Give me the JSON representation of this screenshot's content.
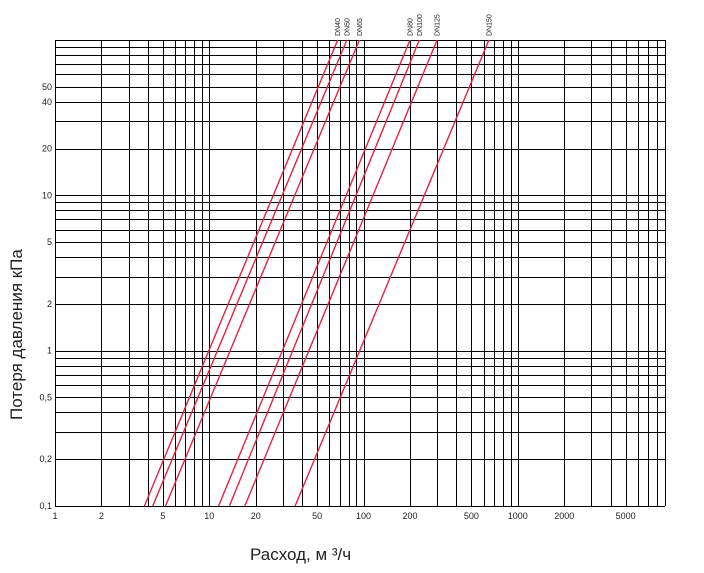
{
  "chart_data": {
    "type": "line",
    "title": "",
    "xlabel": "Расход,  м  ³/ч",
    "ylabel": "Потеря давления  кПа",
    "x_scale": "log",
    "y_scale": "log",
    "xlim": [
      1,
      9000
    ],
    "ylim": [
      0.1,
      100
    ],
    "grid": true,
    "x_ticks": [
      {
        "v": 1,
        "label": "1"
      },
      {
        "v": 2,
        "label": "2"
      },
      {
        "v": 5,
        "label": "5"
      },
      {
        "v": 10,
        "label": "10"
      },
      {
        "v": 20,
        "label": "20"
      },
      {
        "v": 50,
        "label": "50"
      },
      {
        "v": 100,
        "label": "100"
      },
      {
        "v": 200,
        "label": "200"
      },
      {
        "v": 500,
        "label": "500"
      },
      {
        "v": 1000,
        "label": "1000"
      },
      {
        "v": 2000,
        "label": "2000"
      },
      {
        "v": 5000,
        "label": "5000"
      }
    ],
    "y_ticks": [
      {
        "v": 0.1,
        "label": "0,1"
      },
      {
        "v": 0.2,
        "label": "0,2"
      },
      {
        "v": 0.5,
        "label": "0,5"
      },
      {
        "v": 1,
        "label": "1"
      },
      {
        "v": 2,
        "label": "2"
      },
      {
        "v": 5,
        "label": "5"
      },
      {
        "v": 10,
        "label": "10"
      },
      {
        "v": 20,
        "label": "20"
      },
      {
        "v": 40,
        "label": "40"
      },
      {
        "v": 50,
        "label": "50"
      }
    ],
    "series": [
      {
        "name": "DN40",
        "x": [
          3.8,
          68
        ],
        "y": [
          0.1,
          100
        ]
      },
      {
        "name": "DN50",
        "x": [
          4.3,
          78
        ],
        "y": [
          0.1,
          100
        ]
      },
      {
        "name": "DN65",
        "x": [
          5.2,
          94
        ],
        "y": [
          0.1,
          100
        ]
      },
      {
        "name": "DN80",
        "x": [
          11.5,
          200
        ],
        "y": [
          0.1,
          100
        ]
      },
      {
        "name": "DN100",
        "x": [
          13.5,
          230
        ],
        "y": [
          0.1,
          100
        ]
      },
      {
        "name": "DN125",
        "x": [
          17,
          300
        ],
        "y": [
          0.1,
          100
        ]
      },
      {
        "name": "DN150",
        "x": [
          36,
          650
        ],
        "y": [
          0.1,
          100
        ]
      }
    ],
    "line_color": "#e8213c"
  }
}
